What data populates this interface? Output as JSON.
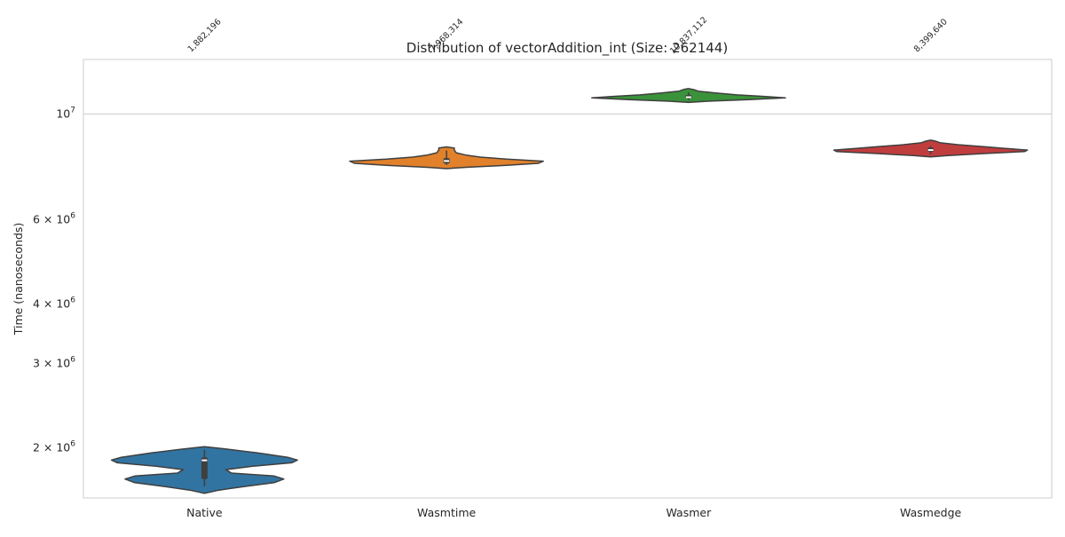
{
  "chart_data": {
    "type": "violin",
    "title": "Distribution of vectorAddition_int (Size: 262144)",
    "xlabel": "",
    "ylabel": "Time (nanoseconds)",
    "yscale": "log",
    "ylim": [
      1570000,
      13000000
    ],
    "grid": true,
    "yticks": [
      {
        "value": 2000000,
        "label": "2 × 10^6",
        "mant": "2 × 10",
        "exp": "6"
      },
      {
        "value": 3000000,
        "label": "3 × 10^6",
        "mant": "3 × 10",
        "exp": "6"
      },
      {
        "value": 4000000,
        "label": "4 × 10^6",
        "mant": "4 × 10",
        "exp": "6"
      },
      {
        "value": 6000000,
        "label": "6 × 10^6",
        "mant": "6 × 10",
        "exp": "6"
      },
      {
        "value": 10000000,
        "label": "10^7",
        "mant": "10",
        "exp": "7"
      }
    ],
    "categories": [
      "Native",
      "Wasmtime",
      "Wasmer",
      "Wasmedge"
    ],
    "series": [
      {
        "name": "Native",
        "color": "#3274a1",
        "median": 1882196,
        "median_label": "1,882,196",
        "q1": 1720000,
        "q3": 1910000,
        "whisker_low": 1660000,
        "whisker_high": 1980000,
        "density": [
          [
            1605000,
            0.0
          ],
          [
            1630000,
            0.15
          ],
          [
            1660000,
            0.42
          ],
          [
            1690000,
            0.72
          ],
          [
            1720000,
            0.82
          ],
          [
            1745000,
            0.72
          ],
          [
            1770000,
            0.28
          ],
          [
            1800000,
            0.22
          ],
          [
            1830000,
            0.5
          ],
          [
            1860000,
            0.9
          ],
          [
            1885000,
            0.96
          ],
          [
            1910000,
            0.86
          ],
          [
            1950000,
            0.55
          ],
          [
            1985000,
            0.25
          ],
          [
            2010000,
            0.0
          ]
        ]
      },
      {
        "name": "Wasmtime",
        "color": "#e1812c",
        "median": 7968314,
        "median_label": "7,968,314",
        "q1": 7870000,
        "q3": 8080000,
        "whisker_low": 7820000,
        "whisker_high": 8380000,
        "density": [
          [
            7680000,
            0.0
          ],
          [
            7730000,
            0.2
          ],
          [
            7800000,
            0.6
          ],
          [
            7880000,
            0.95
          ],
          [
            7960000,
            1.0
          ],
          [
            8040000,
            0.62
          ],
          [
            8120000,
            0.35
          ],
          [
            8200000,
            0.2
          ],
          [
            8290000,
            0.1
          ],
          [
            8400000,
            0.08
          ],
          [
            8480000,
            0.08
          ],
          [
            8530000,
            0.0
          ]
        ]
      },
      {
        "name": "Wasmer",
        "color": "#3a923a",
        "median": 10837112,
        "median_label": "10,837,112",
        "q1": 10780000,
        "q3": 10960000,
        "whisker_low": 10680000,
        "whisker_high": 11100000,
        "density": [
          [
            10570000,
            0.0
          ],
          [
            10630000,
            0.2
          ],
          [
            10710000,
            0.62
          ],
          [
            10800000,
            1.0
          ],
          [
            10880000,
            0.78
          ],
          [
            10960000,
            0.5
          ],
          [
            11060000,
            0.28
          ],
          [
            11160000,
            0.1
          ],
          [
            11250000,
            0.05
          ],
          [
            11300000,
            0.0
          ]
        ]
      },
      {
        "name": "Wasmedge",
        "color": "#c03d3e",
        "median": 8399640,
        "median_label": "8,399,640",
        "q1": 8330000,
        "q3": 8500000,
        "whisker_low": 8230000,
        "whisker_high": 8560000,
        "density": [
          [
            8130000,
            0.0
          ],
          [
            8180000,
            0.18
          ],
          [
            8260000,
            0.55
          ],
          [
            8340000,
            0.97
          ],
          [
            8400000,
            1.0
          ],
          [
            8470000,
            0.76
          ],
          [
            8540000,
            0.55
          ],
          [
            8620000,
            0.28
          ],
          [
            8700000,
            0.1
          ],
          [
            8770000,
            0.05
          ],
          [
            8810000,
            0.0
          ]
        ]
      }
    ]
  }
}
